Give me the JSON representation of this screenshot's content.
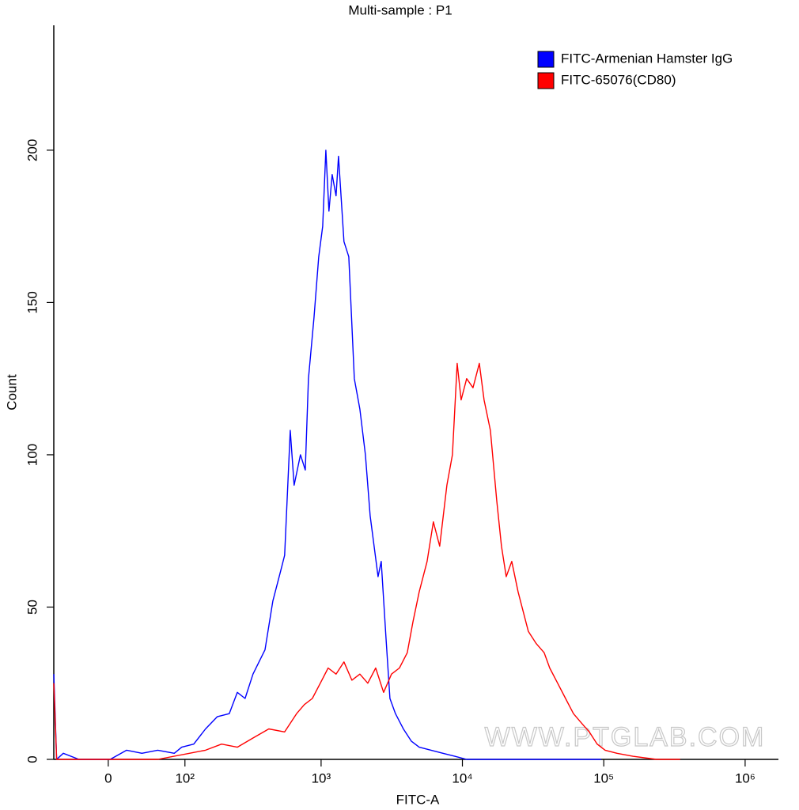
{
  "chart_data": {
    "type": "line",
    "title": "Multi-sample : P1",
    "xlabel": "FITC-A",
    "ylabel": "Count",
    "watermark": "WWW.PTGLAB.COM",
    "xscale": {
      "type": "arcsinh",
      "cofactor": 62.5
    },
    "xlim": [
      -63,
      1720000
    ],
    "xticks": [
      0,
      {
        "value": 100,
        "label": "10²"
      },
      {
        "value": 1000,
        "label": "10³"
      },
      {
        "value": 10000,
        "label": "10⁴"
      },
      {
        "value": 100000,
        "label": "10⁵"
      },
      {
        "value": 1000000,
        "label": "10⁶"
      }
    ],
    "ylim": [
      0,
      241
    ],
    "yticks": [
      0,
      50,
      100,
      150,
      200
    ],
    "legend": "upper right",
    "series": [
      {
        "name": "FITC-Armenian Hamster IgG",
        "color": "#0000ff",
        "x": [
          -63,
          -59,
          -50,
          -31,
          2,
          19,
          36,
          56,
          81,
          94,
          118,
          146,
          179,
          220,
          252,
          287,
          327,
          399,
          454,
          517,
          551,
          604,
          644,
          714,
          772,
          813,
          891,
          962,
          1026,
          1081,
          1137,
          1198,
          1277,
          1328,
          1453,
          1571,
          1719,
          1881,
          2059,
          2225,
          2403,
          2531,
          2665,
          2878,
          3071,
          3359,
          3824,
          4350,
          4946,
          6003,
          7282,
          8831,
          10719,
          15771,
          34156,
          95813
        ],
        "values": [
          28,
          0,
          2,
          0,
          0,
          3,
          2,
          3,
          2,
          4,
          5,
          10,
          14,
          15,
          22,
          20,
          28,
          36,
          52,
          62,
          67,
          108,
          90,
          100,
          95,
          125,
          145,
          165,
          175,
          200,
          180,
          192,
          185,
          198,
          170,
          165,
          125,
          115,
          100,
          80,
          68,
          60,
          65,
          40,
          20,
          15,
          10,
          6,
          4,
          3,
          2,
          1,
          0,
          0,
          0,
          0
        ]
      },
      {
        "name": "FITC-65076(CD80)",
        "color": "#ff0000",
        "x": [
          -63,
          -59,
          -31,
          56,
          109,
          146,
          193,
          252,
          327,
          425,
          551,
          670,
          762,
          867,
          987,
          1122,
          1277,
          1453,
          1653,
          1881,
          2140,
          2434,
          2771,
          3150,
          3584,
          4075,
          4462,
          4946,
          5625,
          6234,
          6912,
          7762,
          8500,
          9188,
          9790,
          10719,
          11881,
          13175,
          14231,
          15771,
          17494,
          18906,
          20425,
          22350,
          24769,
          27106,
          29300,
          33313,
          37906,
          41469,
          47188,
          53656,
          61031,
          69375,
          78938,
          89813,
          102188,
          124063,
          160563,
          236000,
          347188
        ],
        "values": [
          25,
          0,
          0,
          0,
          2,
          3,
          5,
          4,
          7,
          10,
          9,
          15,
          18,
          20,
          25,
          30,
          28,
          32,
          26,
          28,
          25,
          30,
          22,
          28,
          30,
          35,
          45,
          55,
          65,
          78,
          70,
          90,
          100,
          130,
          118,
          125,
          122,
          130,
          118,
          108,
          85,
          70,
          60,
          65,
          55,
          48,
          42,
          38,
          35,
          30,
          25,
          20,
          15,
          12,
          9,
          5,
          3,
          2,
          1,
          0,
          0
        ]
      }
    ]
  }
}
